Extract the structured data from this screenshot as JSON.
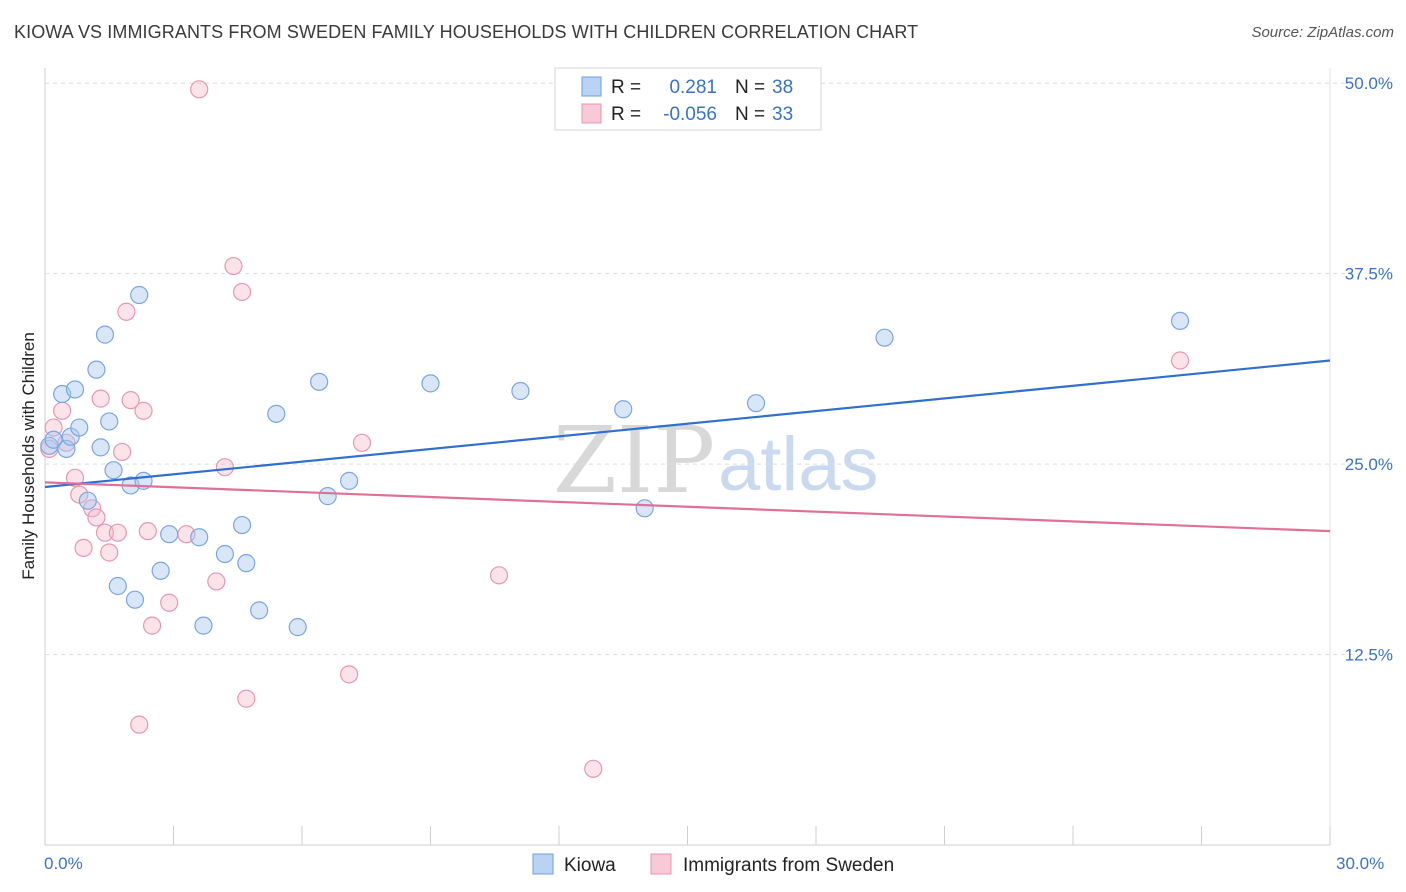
{
  "header": {
    "title": "KIOWA VS IMMIGRANTS FROM SWEDEN FAMILY HOUSEHOLDS WITH CHILDREN CORRELATION CHART",
    "source": "Source: ZipAtlas.com"
  },
  "watermark": {
    "zip": "ZIP",
    "atlas": "atlas"
  },
  "legend_top": [
    {
      "r_label": "R =",
      "r_value": "0.281",
      "n_label": "N =",
      "n_value": "38"
    },
    {
      "r_label": "R =",
      "r_value": "-0.056",
      "n_label": "N =",
      "n_value": "33"
    }
  ],
  "legend_bottom": [
    "Kiowa",
    "Immigrants from Sweden"
  ],
  "chart_data": {
    "type": "scatter",
    "title": "KIOWA VS IMMIGRANTS FROM SWEDEN FAMILY HOUSEHOLDS WITH CHILDREN CORRELATION CHART",
    "ylabel": "Family Households with Children",
    "xlabel": "",
    "xlim": [
      0,
      30
    ],
    "ylim": [
      0,
      51
    ],
    "x_tick_labels": [
      "0.0%",
      "30.0%"
    ],
    "y_tick_labels": [
      "12.5%",
      "25.0%",
      "37.5%",
      "50.0%"
    ],
    "y_ticks": [
      12.5,
      25.0,
      37.5,
      50.0
    ],
    "grid": "horizontal dashed",
    "legend_placement": "top-center and bottom-center",
    "colors": {
      "kiowa": "#a9c8ef",
      "kiowa_line": "#2e6fd0",
      "sweden": "#f5b8cb",
      "sweden_line": "#e07098",
      "tick_label": "#3a72c8"
    },
    "series": [
      {
        "name": "Kiowa",
        "R": 0.281,
        "N": 38,
        "trend": {
          "x": [
            0,
            30
          ],
          "y": [
            23.5,
            31.8
          ]
        },
        "points": [
          [
            0.1,
            26.2
          ],
          [
            0.2,
            26.6
          ],
          [
            0.4,
            29.6
          ],
          [
            0.5,
            26.0
          ],
          [
            0.6,
            26.8
          ],
          [
            0.7,
            29.9
          ],
          [
            0.8,
            27.4
          ],
          [
            1.0,
            22.6
          ],
          [
            1.2,
            31.2
          ],
          [
            1.3,
            26.1
          ],
          [
            1.4,
            33.5
          ],
          [
            1.5,
            27.8
          ],
          [
            1.6,
            24.6
          ],
          [
            1.7,
            17.0
          ],
          [
            2.0,
            23.6
          ],
          [
            2.1,
            16.1
          ],
          [
            2.2,
            36.1
          ],
          [
            2.3,
            23.9
          ],
          [
            2.7,
            18.0
          ],
          [
            2.9,
            20.4
          ],
          [
            3.6,
            20.2
          ],
          [
            3.7,
            14.4
          ],
          [
            4.2,
            19.1
          ],
          [
            4.6,
            21.0
          ],
          [
            4.7,
            18.5
          ],
          [
            5.0,
            15.4
          ],
          [
            5.4,
            28.3
          ],
          [
            5.9,
            14.3
          ],
          [
            6.4,
            30.4
          ],
          [
            6.6,
            22.9
          ],
          [
            7.1,
            23.9
          ],
          [
            9.0,
            30.3
          ],
          [
            11.1,
            29.8
          ],
          [
            13.5,
            28.6
          ],
          [
            14.0,
            22.1
          ],
          [
            16.6,
            29.0
          ],
          [
            19.6,
            33.3
          ],
          [
            26.5,
            34.4
          ]
        ]
      },
      {
        "name": "Immigrants from Sweden",
        "R": -0.056,
        "N": 33,
        "trend": {
          "x": [
            0,
            30
          ],
          "y": [
            23.8,
            20.6
          ]
        },
        "points": [
          [
            0.1,
            26.0
          ],
          [
            0.2,
            27.4
          ],
          [
            0.4,
            28.5
          ],
          [
            0.5,
            26.4
          ],
          [
            0.7,
            24.1
          ],
          [
            0.8,
            23.0
          ],
          [
            0.9,
            19.5
          ],
          [
            1.1,
            22.1
          ],
          [
            1.2,
            21.5
          ],
          [
            1.3,
            29.3
          ],
          [
            1.4,
            20.5
          ],
          [
            1.5,
            19.2
          ],
          [
            1.7,
            20.5
          ],
          [
            1.8,
            25.8
          ],
          [
            1.9,
            35.0
          ],
          [
            2.0,
            29.2
          ],
          [
            2.2,
            7.9
          ],
          [
            2.3,
            28.5
          ],
          [
            2.4,
            20.6
          ],
          [
            2.5,
            14.4
          ],
          [
            2.9,
            15.9
          ],
          [
            3.3,
            20.4
          ],
          [
            3.6,
            49.6
          ],
          [
            4.0,
            17.3
          ],
          [
            4.2,
            24.8
          ],
          [
            4.4,
            38.0
          ],
          [
            4.6,
            36.3
          ],
          [
            4.7,
            9.6
          ],
          [
            7.1,
            11.2
          ],
          [
            7.4,
            26.4
          ],
          [
            10.6,
            17.7
          ],
          [
            12.8,
            5.0
          ],
          [
            26.5,
            31.8
          ]
        ]
      }
    ]
  }
}
